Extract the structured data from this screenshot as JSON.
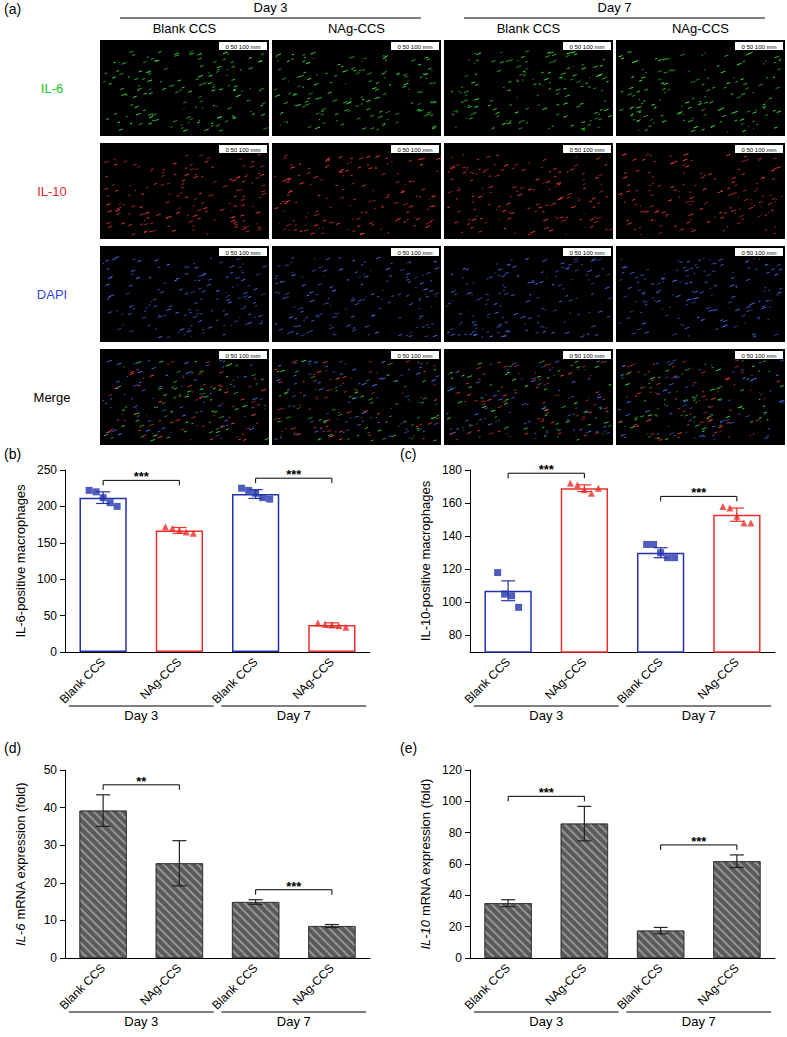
{
  "image_panel": {
    "label": "(a)",
    "groups": [
      {
        "label": "Day 3",
        "columns": [
          "Blank CCS",
          "NAg-CCS"
        ]
      },
      {
        "label": "Day 7",
        "columns": [
          "Blank CCS",
          "NAg-CCS"
        ]
      }
    ],
    "rows": [
      {
        "label": "IL-6",
        "color": "#22c422"
      },
      {
        "label": "IL-10",
        "color": "#e02828"
      },
      {
        "label": "DAPI",
        "color": "#3848d8"
      },
      {
        "label": "Merge",
        "color": "#000000"
      }
    ],
    "scale_bar": "0 50 100 mm"
  },
  "chart_data": [
    {
      "type": "bar",
      "label": "(b)",
      "y_label": "IL-6-positive macrophages",
      "categories": [
        "Blank CCS",
        "NAg-CCS",
        "Blank CCS",
        "NAg-CCS"
      ],
      "values": [
        212,
        167,
        217,
        37
      ],
      "errors": [
        8,
        4,
        6,
        3
      ],
      "points": [
        [
          222,
          220,
          212,
          205,
          200
        ],
        [
          172,
          170,
          167,
          165,
          163
        ],
        [
          225,
          222,
          218,
          212,
          210
        ],
        [
          40,
          38,
          37,
          36,
          34
        ]
      ],
      "colors": [
        "#2233aa",
        "#e8302a",
        "#2233aa",
        "#e8302a"
      ],
      "groups": [
        {
          "label": "Day 3",
          "significance": "***"
        },
        {
          "label": "Day 7",
          "significance": "***"
        }
      ],
      "ylim": [
        0,
        250
      ],
      "yticks": [
        0,
        50,
        100,
        150,
        200,
        250
      ]
    },
    {
      "type": "bar",
      "label": "(c)",
      "y_label": "IL-10-positive macrophages",
      "categories": [
        "Blank CCS",
        "NAg-CCS",
        "Blank CCS",
        "NAg-CCS"
      ],
      "values": [
        107,
        169,
        130,
        153
      ],
      "errors": [
        6,
        2,
        3,
        4
      ],
      "points": [
        [
          118,
          105,
          104,
          97
        ],
        [
          172,
          171,
          168,
          166,
          169
        ],
        [
          135,
          135,
          130,
          127,
          127
        ],
        [
          158,
          157,
          152,
          148,
          148
        ]
      ],
      "colors": [
        "#2233aa",
        "#e8302a",
        "#2233aa",
        "#e8302a"
      ],
      "groups": [
        {
          "label": "Day 3",
          "significance": "***"
        },
        {
          "label": "Day 7",
          "significance": "***"
        }
      ],
      "ylim": [
        70,
        180
      ],
      "yticks": [
        80,
        100,
        120,
        140,
        160,
        180
      ]
    },
    {
      "type": "bar",
      "label": "(d)",
      "y_label": "IL-6 mRNA expression (fold)",
      "categories": [
        "Blank CCS",
        "NAg-CCS",
        "Blank CCS",
        "NAg-CCS"
      ],
      "values": [
        39.2,
        25.2,
        14.9,
        8.5
      ],
      "errors": [
        4.2,
        6,
        0.6,
        0.4
      ],
      "colors": [
        "#5a5a5a",
        "#5a5a5a",
        "#5a5a5a",
        "#5a5a5a"
      ],
      "groups": [
        {
          "label": "Day 3",
          "significance": "**"
        },
        {
          "label": "Day 7",
          "significance": "***"
        }
      ],
      "ylim": [
        0,
        50
      ],
      "yticks": [
        0,
        10,
        20,
        30,
        40,
        50
      ]
    },
    {
      "type": "bar",
      "label": "(e)",
      "y_label": "IL-10 mRNA expression (fold)",
      "categories": [
        "Blank CCS",
        "NAg-CCS",
        "Blank CCS",
        "NAg-CCS"
      ],
      "values": [
        35,
        85.8,
        17.5,
        61.8
      ],
      "errors": [
        2.2,
        11,
        2,
        4
      ],
      "colors": [
        "#5a5a5a",
        "#5a5a5a",
        "#5a5a5a",
        "#5a5a5a"
      ],
      "groups": [
        {
          "label": "Day 3",
          "significance": "***"
        },
        {
          "label": "Day 7",
          "significance": "***"
        }
      ],
      "ylim": [
        0,
        120
      ],
      "yticks": [
        0,
        20,
        40,
        60,
        80,
        100,
        120
      ]
    }
  ]
}
